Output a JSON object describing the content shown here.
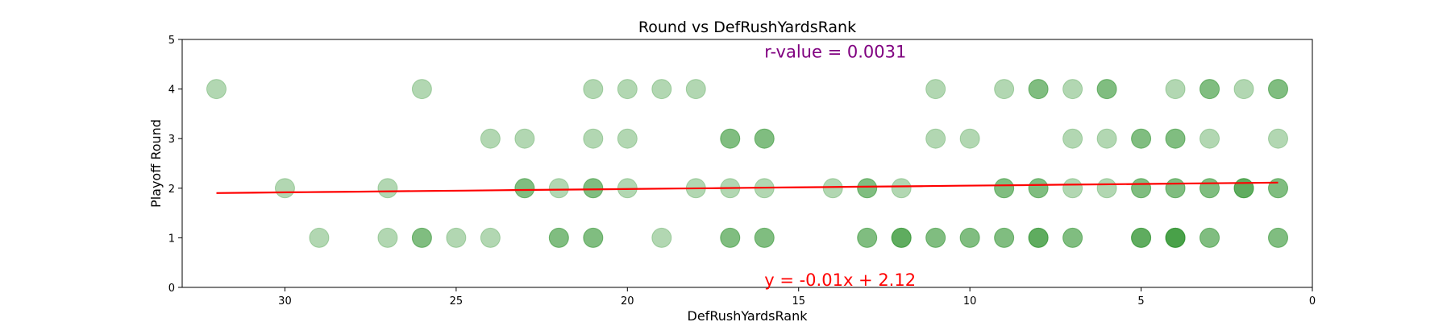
{
  "chart_data": {
    "type": "scatter",
    "title": "Round vs DefRushYardsRank",
    "xlabel": "DefRushYardsRank",
    "ylabel": "Playoff Round",
    "xlim": [
      33,
      0
    ],
    "ylim": [
      0,
      5
    ],
    "x_inverted": true,
    "xticks": [
      30,
      25,
      20,
      15,
      10,
      5,
      0
    ],
    "yticks": [
      0,
      1,
      2,
      3,
      4,
      5
    ],
    "grid": false,
    "point_color": "#228b22",
    "point_alpha": 0.35,
    "points": [
      [
        32,
        4
      ],
      [
        26,
        4
      ],
      [
        21,
        4
      ],
      [
        20,
        4
      ],
      [
        19,
        4
      ],
      [
        18,
        4
      ],
      [
        11,
        4
      ],
      [
        9,
        4
      ],
      [
        8,
        4
      ],
      [
        7,
        4
      ],
      [
        6,
        4
      ],
      [
        4,
        4
      ],
      [
        3,
        4
      ],
      [
        3,
        4
      ],
      [
        2,
        4
      ],
      [
        1,
        4
      ],
      [
        8,
        4
      ],
      [
        6,
        4
      ],
      [
        1,
        4
      ],
      [
        24,
        3
      ],
      [
        23,
        3
      ],
      [
        21,
        3
      ],
      [
        20,
        3
      ],
      [
        17,
        3
      ],
      [
        17,
        3
      ],
      [
        16,
        3
      ],
      [
        16,
        3
      ],
      [
        11,
        3
      ],
      [
        10,
        3
      ],
      [
        7,
        3
      ],
      [
        6,
        3
      ],
      [
        5,
        3
      ],
      [
        5,
        3
      ],
      [
        4,
        3
      ],
      [
        4,
        3
      ],
      [
        3,
        3
      ],
      [
        1,
        3
      ],
      [
        30,
        2
      ],
      [
        27,
        2
      ],
      [
        23,
        2
      ],
      [
        23,
        2
      ],
      [
        22,
        2
      ],
      [
        21,
        2
      ],
      [
        21,
        2
      ],
      [
        20,
        2
      ],
      [
        18,
        2
      ],
      [
        17,
        2
      ],
      [
        16,
        2
      ],
      [
        14,
        2
      ],
      [
        13,
        2
      ],
      [
        13,
        2
      ],
      [
        12,
        2
      ],
      [
        9,
        2
      ],
      [
        9,
        2
      ],
      [
        8,
        2
      ],
      [
        8,
        2
      ],
      [
        7,
        2
      ],
      [
        6,
        2
      ],
      [
        5,
        2
      ],
      [
        5,
        2
      ],
      [
        4,
        2
      ],
      [
        4,
        2
      ],
      [
        3,
        2
      ],
      [
        3,
        2
      ],
      [
        2,
        2
      ],
      [
        2,
        2
      ],
      [
        2,
        2
      ],
      [
        1,
        2
      ],
      [
        1,
        2
      ],
      [
        29,
        1
      ],
      [
        27,
        1
      ],
      [
        26,
        1
      ],
      [
        26,
        1
      ],
      [
        25,
        1
      ],
      [
        24,
        1
      ],
      [
        22,
        1
      ],
      [
        22,
        1
      ],
      [
        21,
        1
      ],
      [
        21,
        1
      ],
      [
        19,
        1
      ],
      [
        17,
        1
      ],
      [
        17,
        1
      ],
      [
        16,
        1
      ],
      [
        16,
        1
      ],
      [
        13,
        1
      ],
      [
        13,
        1
      ],
      [
        12,
        1
      ],
      [
        12,
        1
      ],
      [
        12,
        1
      ],
      [
        11,
        1
      ],
      [
        11,
        1
      ],
      [
        10,
        1
      ],
      [
        10,
        1
      ],
      [
        9,
        1
      ],
      [
        9,
        1
      ],
      [
        8,
        1
      ],
      [
        8,
        1
      ],
      [
        8,
        1
      ],
      [
        7,
        1
      ],
      [
        7,
        1
      ],
      [
        5,
        1
      ],
      [
        5,
        1
      ],
      [
        5,
        1
      ],
      [
        4,
        1
      ],
      [
        4,
        1
      ],
      [
        4,
        1
      ],
      [
        4,
        1
      ],
      [
        3,
        1
      ],
      [
        3,
        1
      ],
      [
        1,
        1
      ],
      [
        1,
        1
      ]
    ],
    "regression": {
      "slope": -0.0068,
      "intercept": 2.12,
      "x_range": [
        32,
        1
      ],
      "color": "#ff0000"
    },
    "annotations": {
      "r_value": {
        "text": "r-value = 0.0031",
        "color": "#800080"
      },
      "equation": {
        "text": "y = -0.01x + 2.12",
        "color": "#ff0000"
      }
    }
  }
}
